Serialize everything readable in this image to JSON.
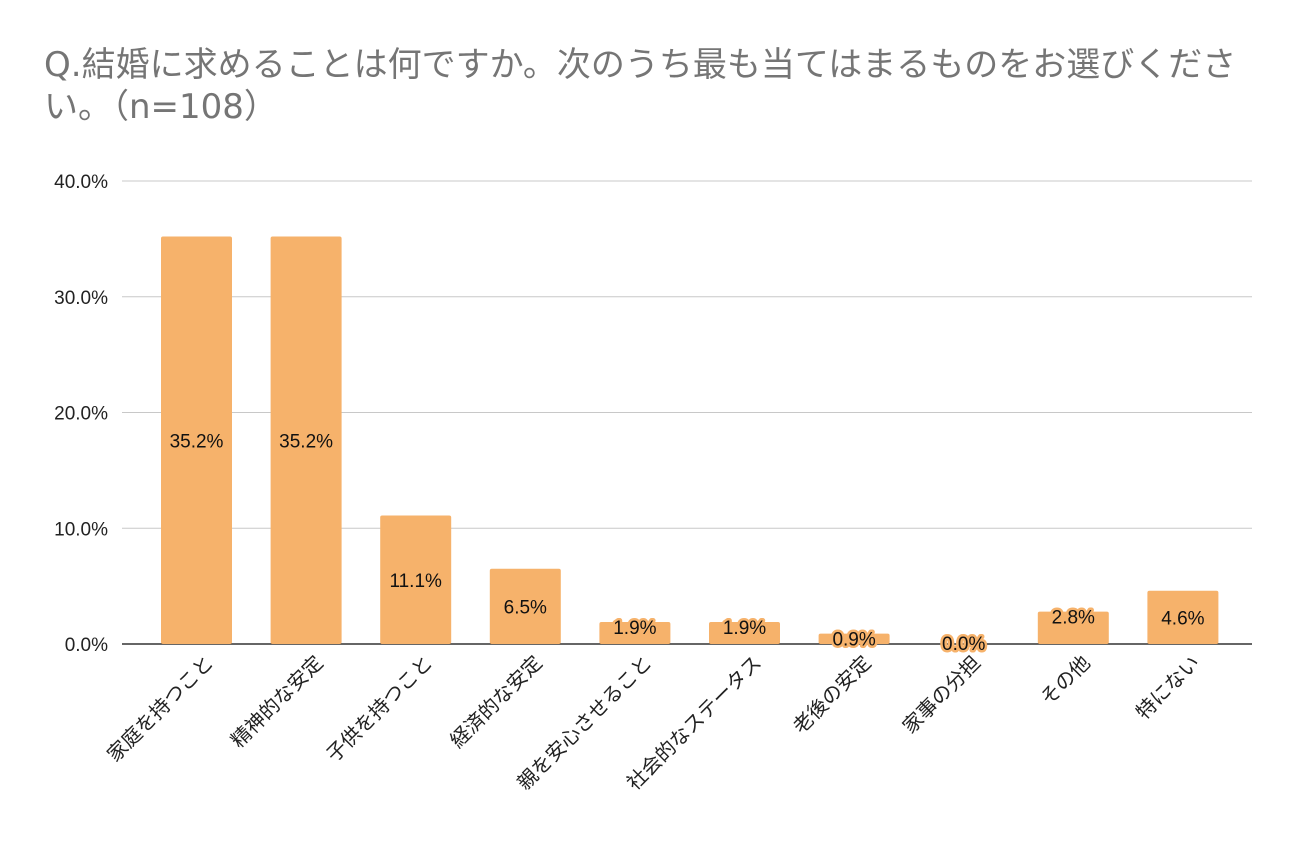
{
  "chart_data": {
    "type": "bar",
    "title": "Q.結婚に求めることは何ですか。次のうち最も当てはまるものをお選びください。（n=108）",
    "xlabel": "",
    "ylabel": "",
    "ylim": [
      0,
      40
    ],
    "yticks": [
      "0.0%",
      "10.0%",
      "20.0%",
      "30.0%",
      "40.0%"
    ],
    "ytick_values": [
      0,
      10,
      20,
      30,
      40
    ],
    "grid": true,
    "legend": "none",
    "bar_color": "#f6b26b",
    "categories": [
      "家庭を持つこと",
      "精神的な安定",
      "子供を持つこと",
      "経済的な安定",
      "親を安心させること",
      "社会的なステータス",
      "老後の安定",
      "家事の分担",
      "その他",
      "特にない"
    ],
    "values": [
      35.2,
      35.2,
      11.1,
      6.5,
      1.9,
      1.9,
      0.9,
      0.0,
      2.8,
      4.6
    ],
    "data_labels": [
      "35.2%",
      "35.2%",
      "11.1%",
      "6.5%",
      "1.9%",
      "1.9%",
      "0.9%",
      "0.0%",
      "2.8%",
      "4.6%"
    ]
  }
}
